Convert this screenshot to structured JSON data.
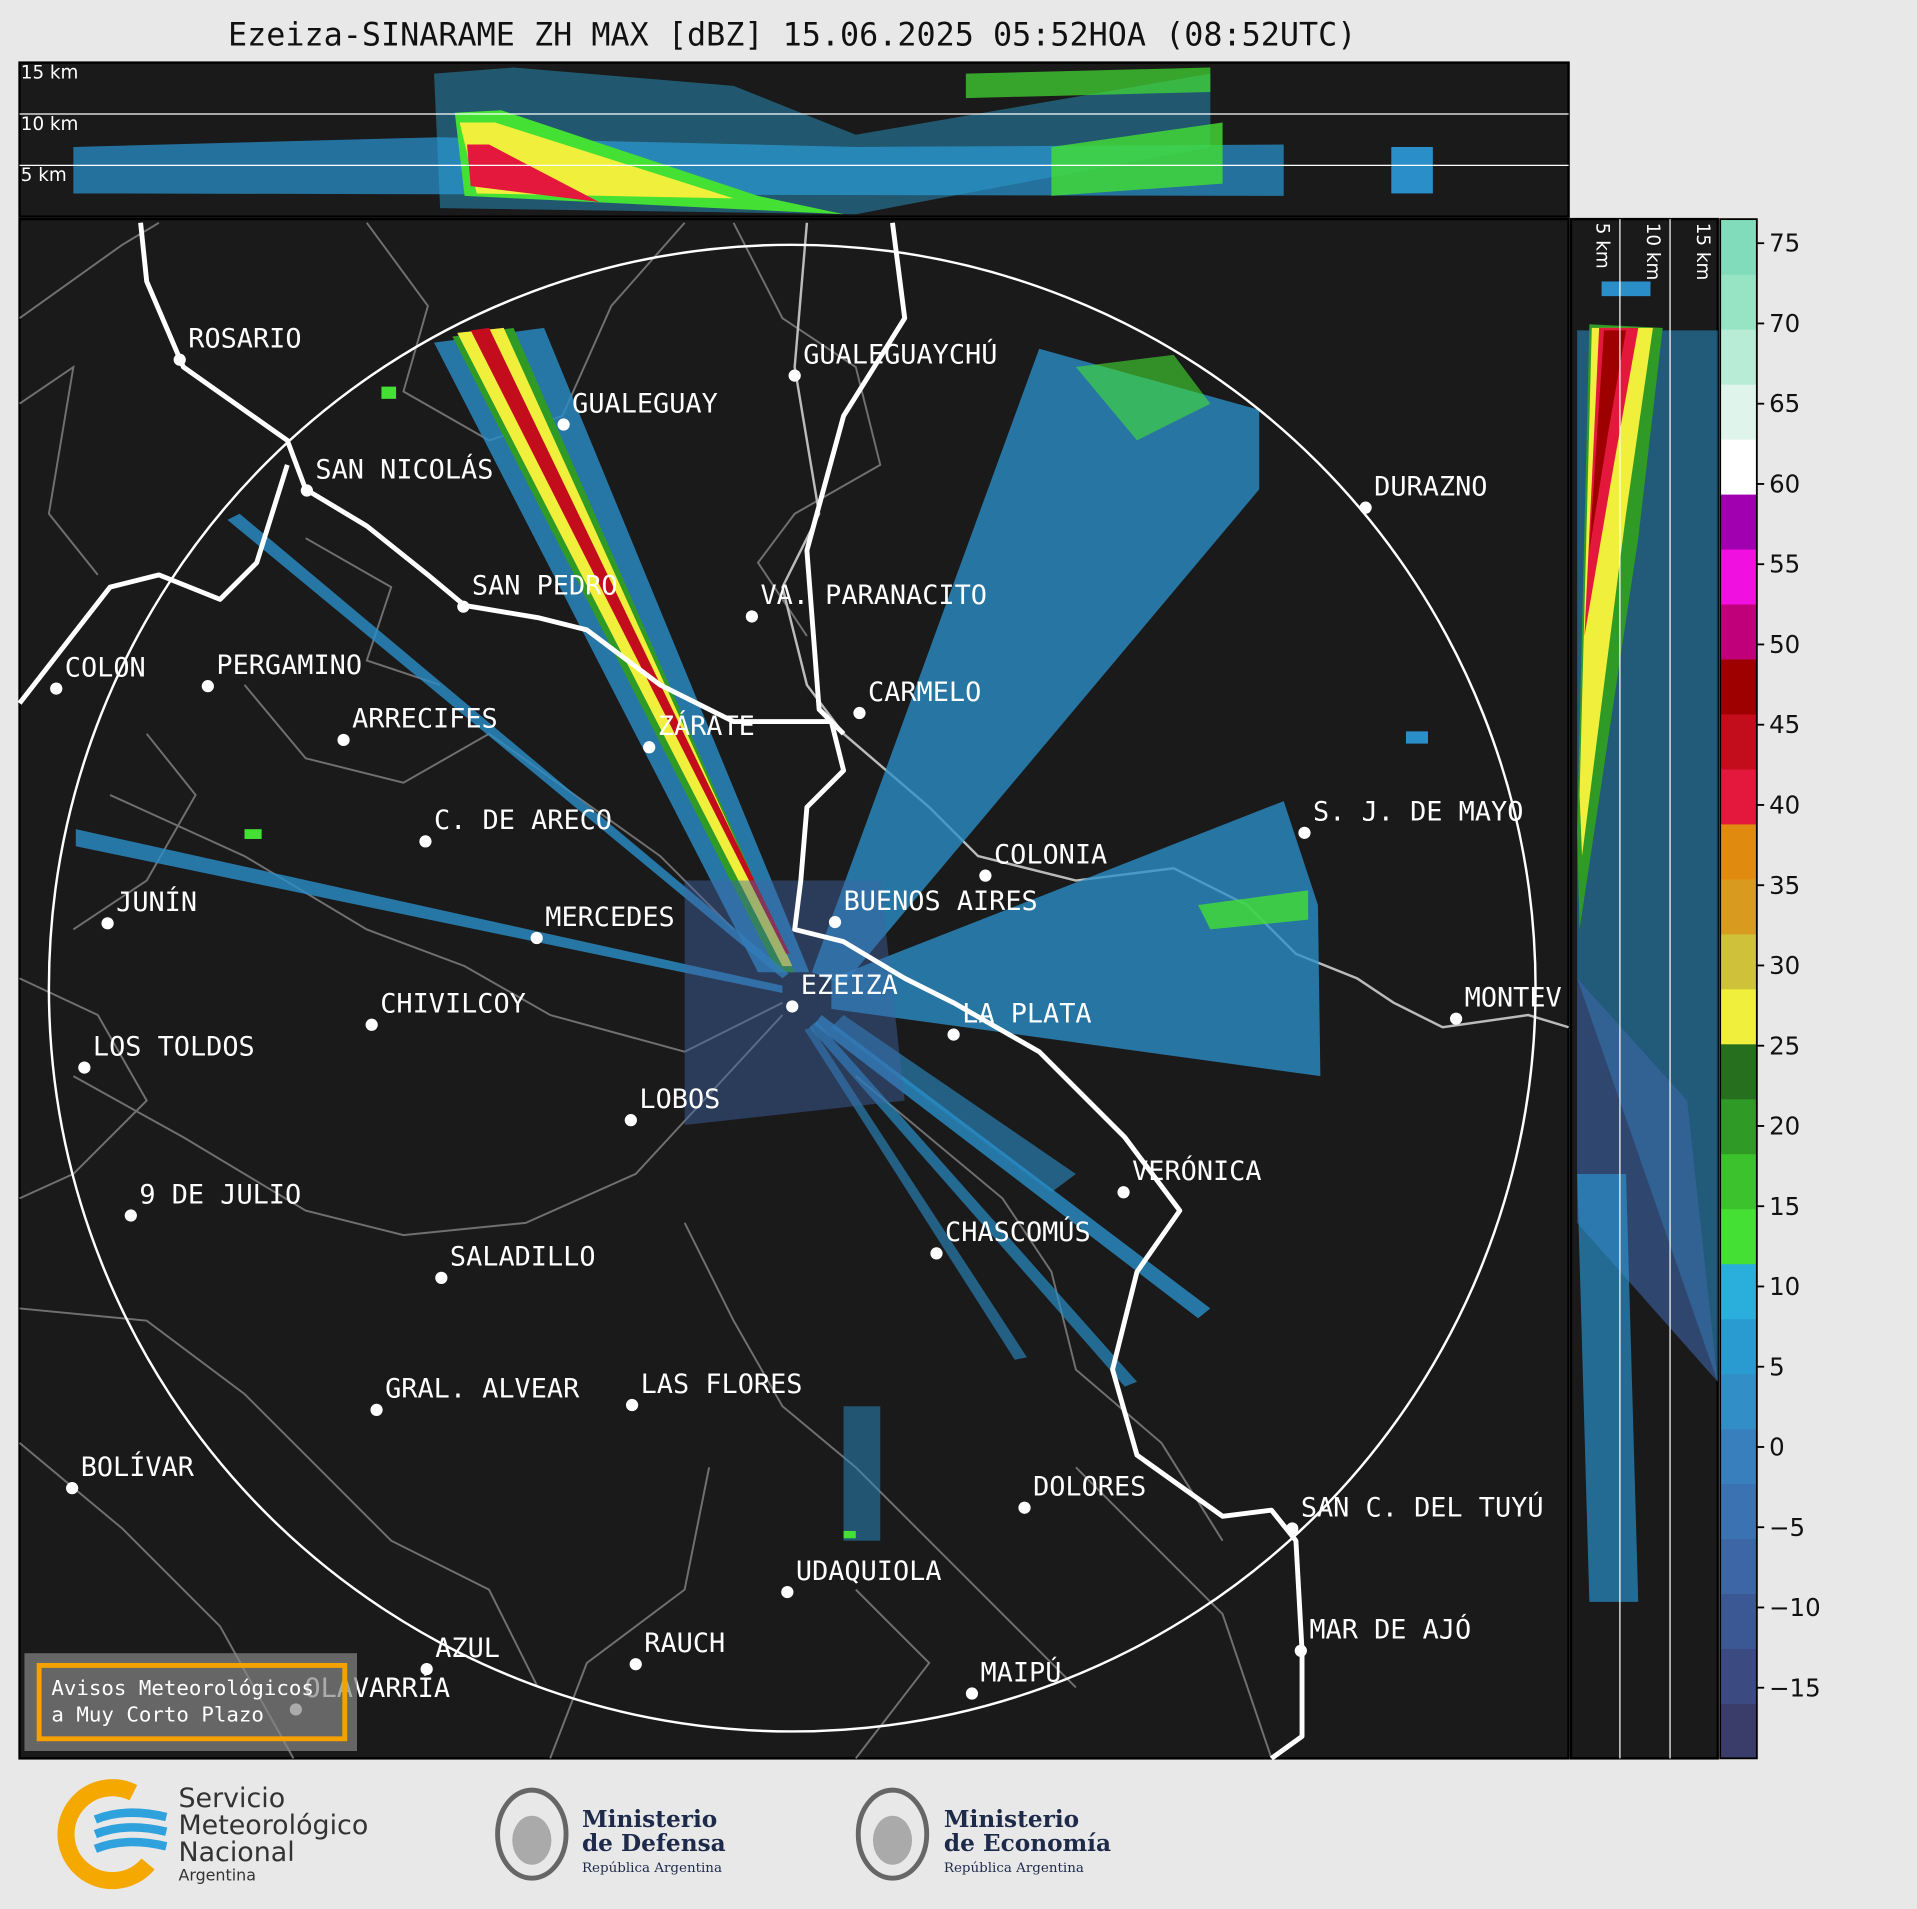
{
  "header": {
    "title": "Ezeiza-SINARAME ZH MAX [dBZ] 15.06.2025 05:52HOA (08:52UTC)"
  },
  "cross_section": {
    "top_labels": [
      "15 km",
      "10 km",
      "5 km"
    ],
    "right_labels": [
      "5 km",
      "10 km",
      "15 km"
    ]
  },
  "map": {
    "cities": [
      "ROSARIO",
      "GUALEGUAYCHÚ",
      "GUALEGUAY",
      "SAN NICOLÁS",
      "DURAZNO",
      "SAN PEDRO",
      "VA. PARANACITO",
      "COLON",
      "PERGAMINO",
      "CARMELO",
      "ARRECIFES",
      "ZÁRATE",
      "S. J. DE MAYO",
      "C. DE ARECO",
      "COLONIA",
      "BUENOS AIRES",
      "JUNÍN",
      "MERCEDES",
      "EZEIZA",
      "MONTEV",
      "LA PLATA",
      "CHIVILCOY",
      "LOS TOLDOS",
      "LOBOS",
      "VERÓNICA",
      "9 DE JULIO",
      "CHASCOMÚS",
      "SALADILLO",
      "GRAL. ALVEAR",
      "LAS FLORES",
      "BOLÍVAR",
      "DOLORES",
      "SAN C. DEL TUYÚ",
      "UDAQUIOLA",
      "MAR DE AJÓ",
      "RAUCH",
      "AZUL",
      "OLAVARRÍA",
      "MAIPÚ"
    ]
  },
  "colorbar": {
    "lim": [
      -19.4,
      76.5
    ],
    "ticks": [
      75,
      70,
      65,
      60,
      55,
      50,
      45,
      40,
      35,
      30,
      25,
      20,
      15,
      10,
      5,
      0,
      {
        "value": -5,
        "label": "−5"
      },
      {
        "value": -10,
        "label": "−10"
      },
      {
        "value": -15,
        "label": "−15"
      }
    ],
    "colors": [
      "#3a3d6a",
      "#3b4a80",
      "#3c5894",
      "#3d66a6",
      "#3b72b2",
      "#3780bd",
      "#328ec6",
      "#2a9bd0",
      "#2aaedc",
      "#44e033",
      "#3cc22c",
      "#2f9a25",
      "#256f1f",
      "#f0ef3c",
      "#cfc23a",
      "#d99a20",
      "#e08a10",
      "#e3183c",
      "#c30c1c",
      "#9e0000",
      "#c0007a",
      "#f010e0",
      "#a000b0",
      "#ffffff",
      "#dff4ea",
      "#b8ecd6",
      "#97e4c4",
      "#80dcba"
    ]
  },
  "notice": {
    "lines": [
      "Avisos Meteorológicos",
      "a Muy Corto Plazo"
    ]
  },
  "footer": {
    "logos": [
      {
        "lines": [
          "Servicio",
          "Meteorológico",
          "Nacional",
          "Argentina"
        ]
      },
      {
        "lines": [
          "Ministerio",
          "de Defensa",
          "República Argentina"
        ]
      },
      {
        "lines": [
          "Ministerio",
          "de Economía",
          "República Argentina"
        ]
      }
    ]
  }
}
